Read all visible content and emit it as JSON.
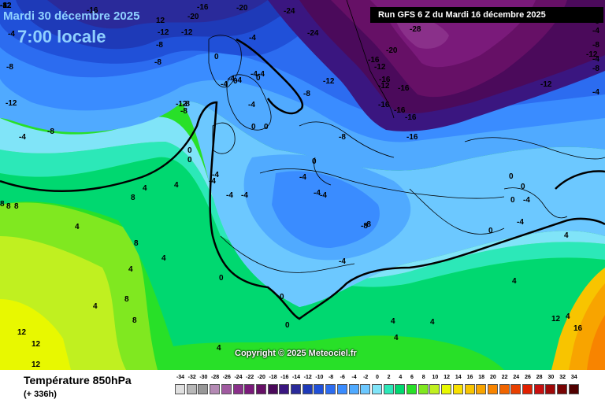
{
  "header": {
    "date": "Mardi 30 décembre 2025",
    "time": "7:00 locale",
    "run": "Run GFS 6 Z du Mardi 16 décembre 2025"
  },
  "footer": {
    "variable": "Température 850hPa",
    "range": "(+ 336h)",
    "copyright": "Copyright © 2025 Meteociel.fr"
  },
  "legend": {
    "values": [
      "-34",
      "-32",
      "-30",
      "-28",
      "-26",
      "-24",
      "-22",
      "-20",
      "-18",
      "-16",
      "-14",
      "-12",
      "-10",
      "-8",
      "-6",
      "-4",
      "-2",
      "0",
      "2",
      "4",
      "6",
      "8",
      "10",
      "12",
      "14",
      "16",
      "18",
      "20",
      "22",
      "24",
      "26",
      "28",
      "30",
      "32",
      "34"
    ],
    "colors": [
      "#e0e0e0",
      "#b8b8b8",
      "#989898",
      "#b48ab4",
      "#a05aa0",
      "#8a308a",
      "#7a1a7a",
      "#661066",
      "#4b0a5b",
      "#3a1680",
      "#2a2a9a",
      "#1e3ab8",
      "#2050d8",
      "#2c6cf0",
      "#3a8cff",
      "#50aaff",
      "#6cc8ff",
      "#80e4f8",
      "#2ce8b8",
      "#00d870",
      "#28e028",
      "#80e820",
      "#c0f020",
      "#e8f800",
      "#f8e000",
      "#f8c400",
      "#f8a400",
      "#f88400",
      "#f06400",
      "#e84000",
      "#e02000",
      "#c81010",
      "#a00808",
      "#780404",
      "#500000"
    ]
  },
  "map_labels": [
    {
      "text": "-16",
      "color": "#fff"
    },
    {
      "text": "-4",
      "color": "#fff"
    },
    {
      "text": "12",
      "color": "#fff"
    },
    {
      "text": "-20",
      "color": "#fff"
    },
    {
      "text": "-16",
      "color": "#fff"
    },
    {
      "text": "-20",
      "color": "#000"
    },
    {
      "text": "-24",
      "color": "#000"
    },
    {
      "text": "-28",
      "color": "#000"
    },
    {
      "text": "-24",
      "color": "#000"
    },
    {
      "text": "-12",
      "color": "#000"
    },
    {
      "text": "-12",
      "color": "#000"
    },
    {
      "text": "-8",
      "color": "#fff"
    },
    {
      "text": "-8",
      "color": "#fff"
    },
    {
      "text": "-4",
      "color": "#000"
    },
    {
      "text": "0",
      "color": "#000"
    },
    {
      "text": "-20",
      "color": "#000"
    },
    {
      "text": "-16",
      "color": "#fff"
    },
    {
      "text": "-12",
      "color": "#fff"
    },
    {
      "text": "-16",
      "color": "#fff"
    },
    {
      "text": "-12",
      "color": "#fff"
    },
    {
      "text": "-16",
      "color": "#fff"
    },
    {
      "text": "-16",
      "color": "#fff"
    },
    {
      "text": "-16",
      "color": "#fff"
    },
    {
      "text": "-16",
      "color": "#fff"
    },
    {
      "text": "-16",
      "color": "#fff"
    },
    {
      "text": "-12",
      "color": "#fff"
    },
    {
      "text": "-12",
      "color": "#000"
    },
    {
      "text": "-8",
      "color": "#fff"
    },
    {
      "text": "-4",
      "color": "#fff"
    },
    {
      "text": "-4",
      "color": "#fff"
    },
    {
      "text": "-8",
      "color": "#fff"
    },
    {
      "text": "-8",
      "color": "#fff"
    },
    {
      "text": "-12",
      "color": "#fff"
    },
    {
      "text": "-8",
      "color": "#fff"
    },
    {
      "text": "-4",
      "color": "#000"
    },
    {
      "text": "-4",
      "color": "#000"
    },
    {
      "text": "0",
      "color": "#000"
    },
    {
      "text": "-4",
      "color": "#000"
    },
    {
      "text": "0",
      "color": "#000"
    },
    {
      "text": "-12",
      "color": "#fff"
    },
    {
      "text": "-8",
      "color": "#fff"
    },
    {
      "text": "0",
      "color": "#000"
    },
    {
      "text": "0",
      "color": "#000"
    },
    {
      "text": "-4",
      "color": "#000"
    },
    {
      "text": "0",
      "color": "#000"
    },
    {
      "text": "0",
      "color": "#000"
    },
    {
      "text": "-8",
      "color": "#000"
    },
    {
      "text": "0",
      "color": "#000"
    },
    {
      "text": "-4",
      "color": "#000"
    },
    {
      "text": "-4",
      "color": "#000"
    },
    {
      "text": "-4",
      "color": "#000"
    },
    {
      "text": "-4",
      "color": "#000"
    },
    {
      "text": "-4",
      "color": "#000"
    },
    {
      "text": "-4",
      "color": "#000"
    },
    {
      "text": "-4",
      "color": "#000"
    },
    {
      "text": "4",
      "color": "#000"
    },
    {
      "text": "4",
      "color": "#000"
    },
    {
      "text": "4",
      "color": "#000"
    },
    {
      "text": "8",
      "color": "#000"
    },
    {
      "text": "8",
      "color": "#000"
    },
    {
      "text": "4",
      "color": "#000"
    },
    {
      "text": "4",
      "color": "#000"
    },
    {
      "text": "-8",
      "color": "#000"
    },
    {
      "text": "-4",
      "color": "#000"
    },
    {
      "text": "0",
      "color": "#000"
    },
    {
      "text": "0",
      "color": "#000"
    },
    {
      "text": "0",
      "color": "#000"
    },
    {
      "text": "4",
      "color": "#000"
    },
    {
      "text": "4",
      "color": "#000"
    },
    {
      "text": "8",
      "color": "#000"
    },
    {
      "text": "4",
      "color": "#000"
    },
    {
      "text": "8",
      "color": "#000"
    },
    {
      "text": "8",
      "color": "#000"
    },
    {
      "text": "8",
      "color": "#000"
    },
    {
      "text": "8",
      "color": "#000"
    },
    {
      "text": "12",
      "color": "#000"
    },
    {
      "text": "12",
      "color": "#000"
    },
    {
      "text": "12",
      "color": "#000"
    },
    {
      "text": "4",
      "color": "#000"
    },
    {
      "text": "4",
      "color": "#000"
    },
    {
      "text": "0",
      "color": "#000"
    },
    {
      "text": "0",
      "color": "#000"
    },
    {
      "text": "-4",
      "color": "#000"
    },
    {
      "text": "0",
      "color": "#000"
    },
    {
      "text": "0",
      "color": "#000"
    },
    {
      "text": "4",
      "color": "#000"
    },
    {
      "text": "-4",
      "color": "#000"
    },
    {
      "text": "4",
      "color": "#000"
    },
    {
      "text": "4",
      "color": "#000"
    },
    {
      "text": "12",
      "color": "#000"
    },
    {
      "text": "16",
      "color": "#000"
    },
    {
      "text": "-8",
      "color": "#000"
    },
    {
      "text": "-4",
      "color": "#000"
    },
    {
      "text": "-12",
      "color": "#000"
    },
    {
      "text": "-8",
      "color": "#000"
    },
    {
      "text": "-4",
      "color": "#000"
    },
    {
      "text": "-4",
      "color": "#000"
    },
    {
      "text": "-8",
      "color": "#000"
    },
    {
      "text": "-4",
      "color": "#000"
    },
    {
      "text": "-8",
      "color": "#000"
    },
    {
      "text": "-8",
      "color": "#000"
    },
    {
      "text": "-12",
      "color": "#000"
    },
    {
      "text": "-12",
      "color": "#000"
    },
    {
      "text": "-12",
      "color": "#000"
    },
    {
      "text": "-8",
      "color": "#000"
    }
  ]
}
